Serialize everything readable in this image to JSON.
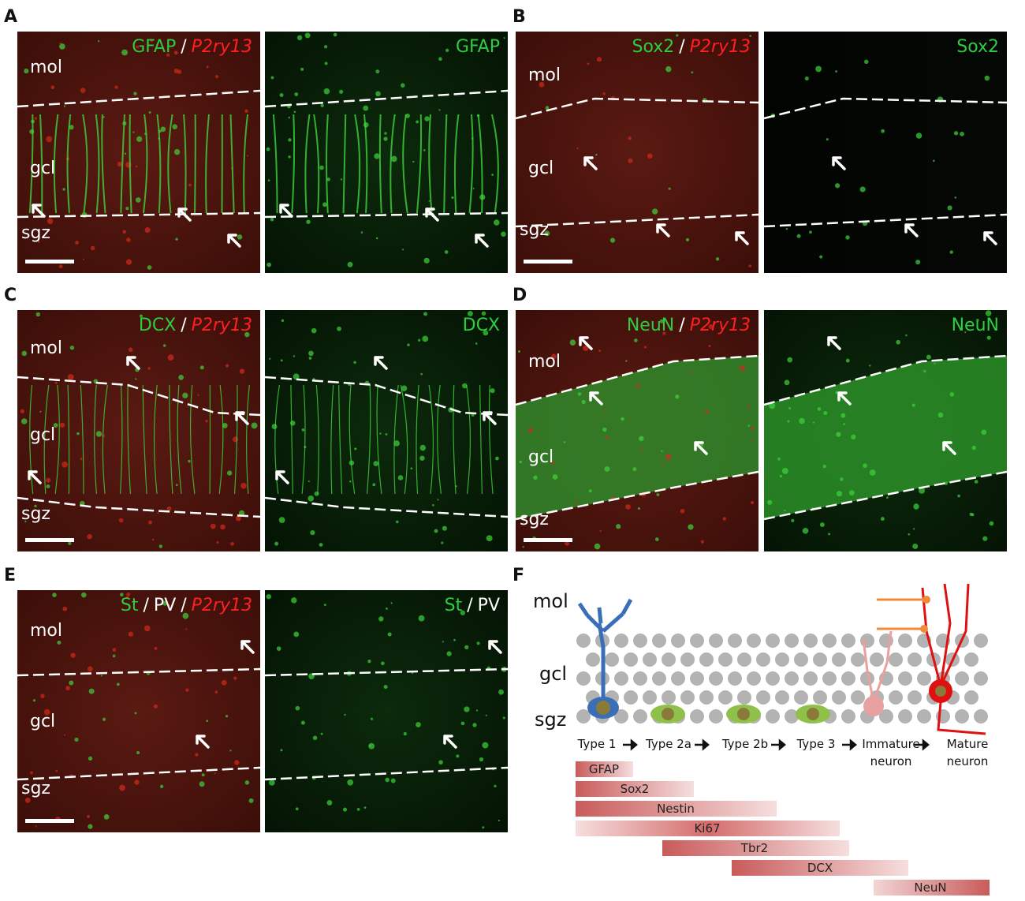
{
  "panels": [
    {
      "letter": "A",
      "merge_label": [
        {
          "text": "GFAP",
          "color": "#2ecc40"
        },
        {
          "text": "/",
          "color": "#ffffff"
        },
        {
          "text": "P2ry13",
          "color": "#ff2020",
          "italic": true
        }
      ],
      "single_label": [
        {
          "text": "GFAP",
          "color": "#2ecc40"
        }
      ],
      "layers": [
        "mol",
        "gcl",
        "sgz"
      ]
    },
    {
      "letter": "B",
      "merge_label": [
        {
          "text": "Sox2",
          "color": "#2ecc40"
        },
        {
          "text": "/",
          "color": "#ffffff"
        },
        {
          "text": "P2ry13",
          "color": "#ff2020",
          "italic": true
        }
      ],
      "single_label": [
        {
          "text": "Sox2",
          "color": "#2ecc40"
        }
      ],
      "layers": [
        "mol",
        "gcl",
        "sgz"
      ]
    },
    {
      "letter": "C",
      "merge_label": [
        {
          "text": "DCX",
          "color": "#2ecc40"
        },
        {
          "text": "/",
          "color": "#ffffff"
        },
        {
          "text": "P2ry13",
          "color": "#ff2020",
          "italic": true
        }
      ],
      "single_label": [
        {
          "text": "DCX",
          "color": "#2ecc40"
        }
      ],
      "layers": [
        "mol",
        "gcl",
        "sgz"
      ]
    },
    {
      "letter": "D",
      "merge_label": [
        {
          "text": "NeuN",
          "color": "#2ecc40"
        },
        {
          "text": "/",
          "color": "#ffffff"
        },
        {
          "text": "P2ry13",
          "color": "#ff2020",
          "italic": true
        }
      ],
      "single_label": [
        {
          "text": "NeuN",
          "color": "#2ecc40"
        }
      ],
      "layers": [
        "mol",
        "gcl",
        "sgz"
      ]
    },
    {
      "letter": "E",
      "merge_label": [
        {
          "text": "St",
          "color": "#2ecc40"
        },
        {
          "text": "/",
          "color": "#ffffff"
        },
        {
          "text": "PV",
          "color": "#ffffff"
        },
        {
          "text": "/",
          "color": "#ffffff"
        },
        {
          "text": "P2ry13",
          "color": "#ff2020",
          "italic": true
        }
      ],
      "single_label": [
        {
          "text": "St",
          "color": "#2ecc40"
        },
        {
          "text": "/",
          "color": "#ffffff"
        },
        {
          "text": "PV",
          "color": "#ffffff"
        }
      ],
      "layers": [
        "mol",
        "gcl",
        "sgz"
      ]
    }
  ],
  "diagram": {
    "letter": "F",
    "layers": [
      "mol",
      "gcl",
      "sgz"
    ],
    "stages": [
      "Type 1",
      "Type 2a",
      "Type 2b",
      "Type 3",
      "Immature neuron",
      "Mature neuron"
    ],
    "markers": [
      "GFAP",
      "Sox2",
      "Nestin",
      "Ki67",
      "Tbr2",
      "DCX",
      "NeuN"
    ]
  }
}
